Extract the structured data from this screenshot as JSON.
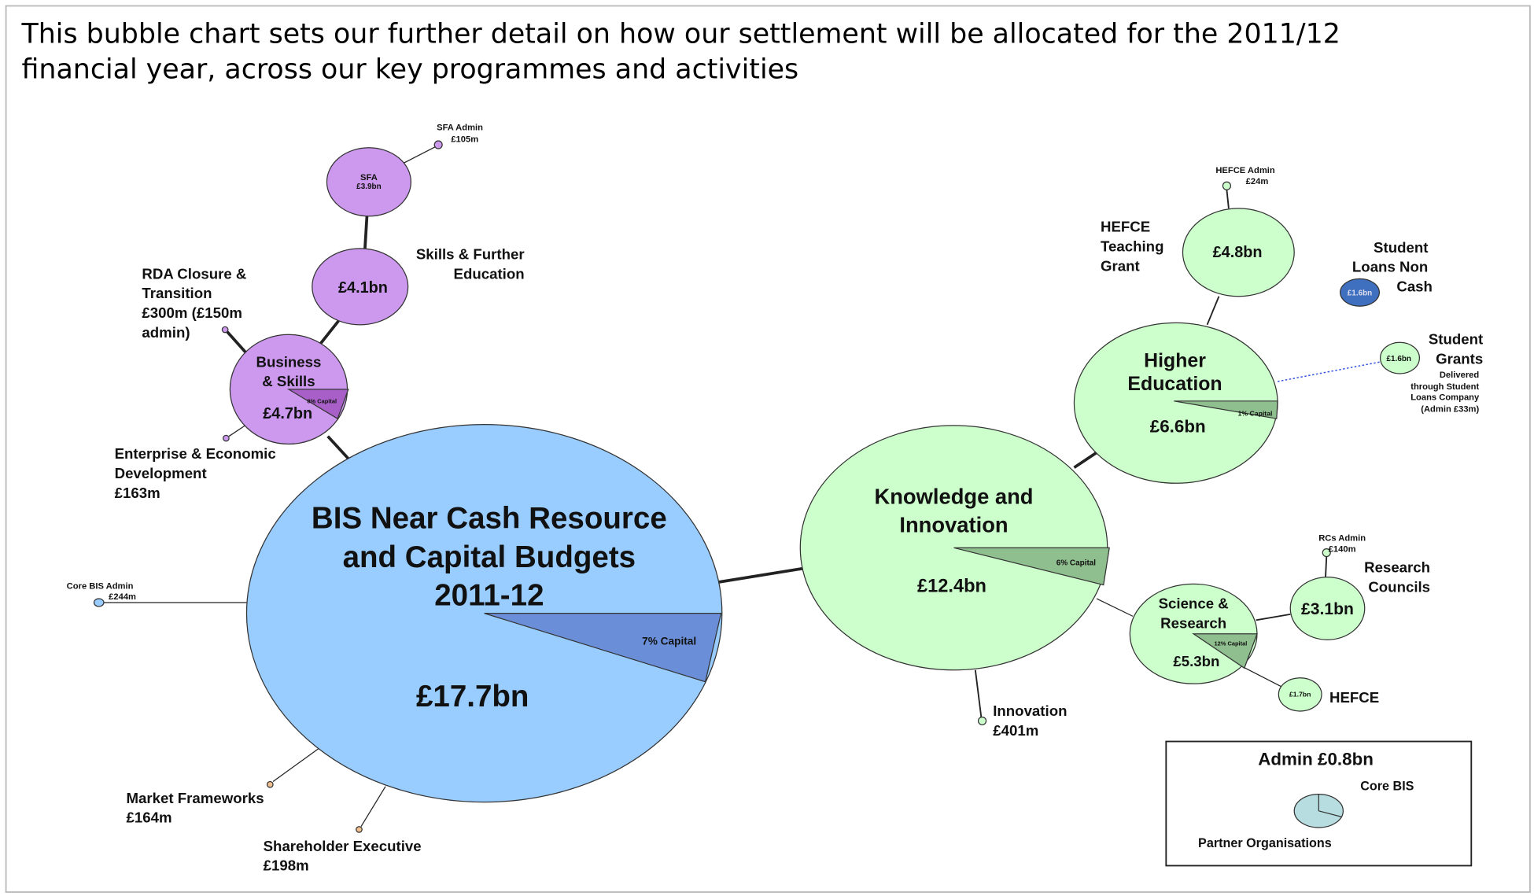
{
  "header": {
    "lines": [
      "This bubble chart sets our further detail on how our settlement will be allocated for the 2011/12",
      "financial year, across our key programmes and activities"
    ]
  },
  "nodes": [
    {
      "text": [
        "BIS Near Cash Resource",
        "and Capital Budgets",
        "2011-12",
        "£17.7bn"
      ],
      "wedge": "7% Capital"
    },
    {
      "text": [
        "Knowledge and",
        "Innovation",
        "£12.4bn"
      ],
      "wedge": "6% Capital"
    },
    {
      "text": [
        "Higher",
        "Education",
        "£6.6bn"
      ],
      "wedge": "1% Capital"
    },
    {
      "text": [
        "£4.8bn"
      ],
      "caption": [
        "HEFCE",
        "Teaching",
        "Grant"
      ]
    },
    {
      "caption": [
        "HEFCE Admin",
        "£24m"
      ]
    },
    {
      "text": [
        "£1.6bn"
      ],
      "caption": [
        "Student",
        "Loans Non",
        "Cash"
      ]
    },
    {
      "text": [
        "£1.6bn"
      ],
      "caption": [
        "Student",
        "Grants"
      ],
      "note": [
        "Delivered",
        "through Student",
        "Loans Company",
        "(Admin £33m)"
      ]
    },
    {
      "text": [
        "Science &",
        "Research",
        "£5.3bn"
      ],
      "wedge": "12% Capital"
    },
    {
      "text": [
        "£3.1bn"
      ],
      "caption": [
        "Research",
        "Councils"
      ]
    },
    {
      "caption": [
        "RCs Admin",
        "£140m"
      ]
    },
    {
      "text": [
        "£1.7bn"
      ],
      "caption": [
        "HEFCE"
      ]
    },
    {
      "caption": [
        "Innovation",
        "£401m"
      ]
    },
    {
      "text": [
        "Business",
        "& Skills",
        "£4.7bn"
      ],
      "wedge": "8% Capital"
    },
    {
      "text": [
        "£4.1bn"
      ],
      "caption": [
        "Skills & Further",
        "Education"
      ]
    },
    {
      "text": [
        "SFA",
        "£3.9bn"
      ]
    },
    {
      "caption": [
        "SFA Admin",
        "£105m"
      ]
    },
    {
      "caption": [
        "RDA Closure &",
        "Transition",
        "£300m (£150m",
        "admin)"
      ]
    },
    {
      "caption": [
        "Enterprise & Economic",
        "Development",
        "£163m"
      ]
    },
    {
      "caption": [
        "Core BIS Admin",
        "£244m"
      ]
    },
    {
      "caption": [
        "Market Frameworks",
        "£164m"
      ]
    },
    {
      "caption": [
        "Shareholder Executive",
        "£198m"
      ]
    }
  ],
  "legend": {
    "title": "Admin £0.8bn",
    "items": [
      "Core BIS",
      "Partner Organisations"
    ]
  }
}
